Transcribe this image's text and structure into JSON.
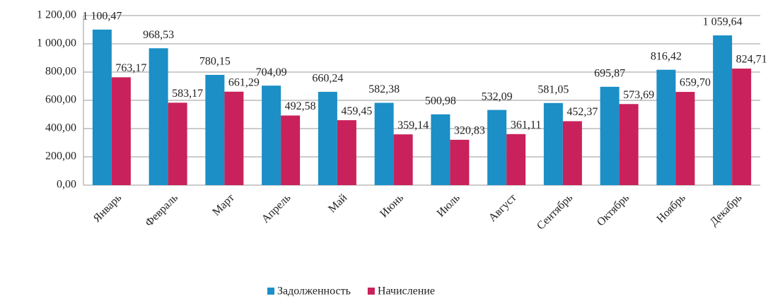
{
  "chart_data": {
    "type": "bar",
    "categories": [
      "Январь",
      "Февраль",
      "Март",
      "Апрель",
      "Май",
      "Июнь",
      "Июль",
      "Август",
      "Сентябрь",
      "Октябрь",
      "Ноябрь",
      "Декабрь"
    ],
    "series": [
      {
        "name": "Задолженность",
        "color": "#1b8fc6",
        "values": [
          1100.47,
          968.53,
          780.15,
          704.09,
          660.24,
          582.38,
          500.98,
          532.09,
          581.05,
          695.87,
          816.42,
          1059.64
        ],
        "value_labels": [
          "1 100,47",
          "968,53",
          "780,15",
          "704,09",
          "660,24",
          "582,38",
          "500,98",
          "532,09",
          "581,05",
          "695,87",
          "816,42",
          "1 059,64"
        ]
      },
      {
        "name": "Начисление",
        "color": "#c9215b",
        "values": [
          763.17,
          583.17,
          661.29,
          492.58,
          459.45,
          359.14,
          320.83,
          361.11,
          452.37,
          573.69,
          659.7,
          824.71
        ],
        "value_labels": [
          "763,17",
          "583,17",
          "661,29",
          "492,58",
          "459,45",
          "359,14",
          "320,83",
          "361,11",
          "452,37",
          "573,69",
          "659,70",
          "824,71"
        ]
      }
    ],
    "ylim": [
      0,
      1200
    ],
    "yticks": [
      {
        "value": 0,
        "label": "0,00"
      },
      {
        "value": 200,
        "label": "200,00"
      },
      {
        "value": 400,
        "label": "400,00"
      },
      {
        "value": 600,
        "label": "600,00"
      },
      {
        "value": 800,
        "label": "800,00"
      },
      {
        "value": 1000,
        "label": "1 000,00"
      },
      {
        "value": 1200,
        "label": "1 200,00"
      }
    ],
    "grid": true,
    "legend": "bottom"
  }
}
